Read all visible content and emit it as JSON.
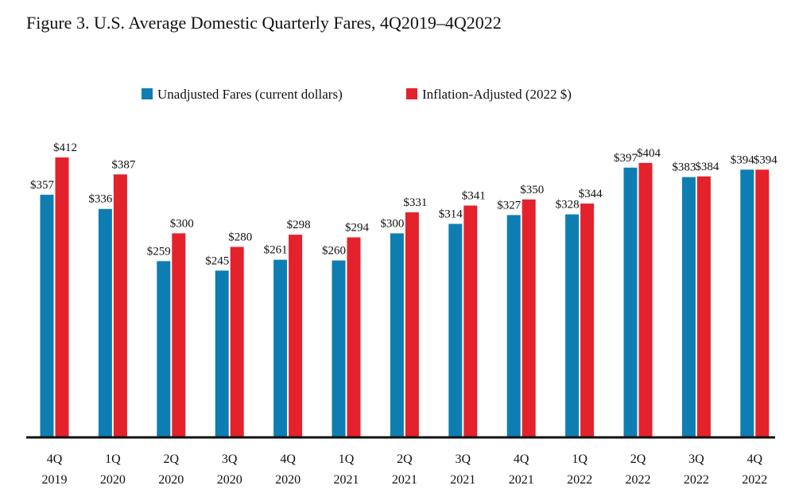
{
  "chart_data": {
    "type": "bar",
    "title": "Figure 3. U.S. Average Domestic Quarterly Fares, 4Q2019–4Q2022",
    "xlabel": "",
    "ylabel": "",
    "ylim": [
      0,
      450
    ],
    "grid": false,
    "legend_position": "top-center",
    "categories": [
      [
        "4Q",
        "2019"
      ],
      [
        "1Q",
        "2020"
      ],
      [
        "2Q",
        "2020"
      ],
      [
        "3Q",
        "2020"
      ],
      [
        "4Q",
        "2020"
      ],
      [
        "1Q",
        "2021"
      ],
      [
        "2Q",
        "2021"
      ],
      [
        "3Q",
        "2021"
      ],
      [
        "4Q",
        "2021"
      ],
      [
        "1Q",
        "2022"
      ],
      [
        "2Q",
        "2022"
      ],
      [
        "3Q",
        "2022"
      ],
      [
        "4Q",
        "2022"
      ]
    ],
    "series": [
      {
        "name": "Unadjusted Fares (current dollars)",
        "color": "#0e7eb2",
        "values": [
          357,
          336,
          259,
          245,
          261,
          260,
          300,
          314,
          327,
          328,
          397,
          383,
          394
        ],
        "labels": [
          "$357",
          "$336",
          "$259",
          "$245",
          "$261",
          "$260",
          "$300",
          "$314",
          "$327",
          "$328",
          "$397",
          "$383",
          "$394"
        ]
      },
      {
        "name": "Inflation-Adjusted (2022 $)",
        "color": "#e4222b",
        "values": [
          412,
          387,
          300,
          280,
          298,
          294,
          331,
          341,
          350,
          344,
          404,
          384,
          394
        ],
        "labels": [
          "$412",
          "$387",
          "$300",
          "$280",
          "$298",
          "$294",
          "$331",
          "$341",
          "$350",
          "$344",
          "$404",
          "$384",
          "$394"
        ]
      }
    ]
  }
}
